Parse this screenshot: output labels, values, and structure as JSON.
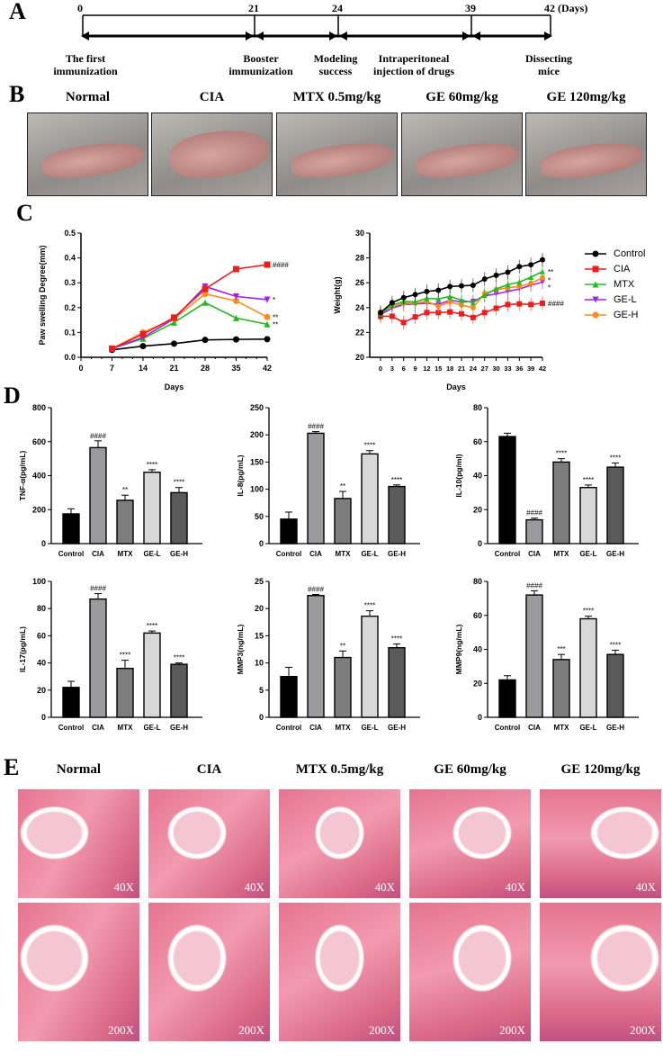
{
  "panels": {
    "A": "A",
    "B": "B",
    "C": "C",
    "D": "D",
    "E": "E"
  },
  "timeline": {
    "days": [
      "0",
      "21",
      "24",
      "39",
      "42"
    ],
    "unit": "(Days)",
    "events": [
      "The first immunization",
      "Booster immunization",
      "Modeling success",
      "Intraperitoneal injection of drugs",
      "Dissecting mice"
    ]
  },
  "photos": {
    "titles": [
      "Normal",
      "CIA",
      "MTX 0.5mg/kg",
      "GE 60mg/kg",
      "GE 120mg/kg"
    ]
  },
  "histology": {
    "titles": [
      "Normal",
      "CIA",
      "MTX 0.5mg/kg",
      "GE 60mg/kg",
      "GE 120mg/kg"
    ],
    "mag_low": "40X",
    "mag_high": "200X"
  },
  "colors": {
    "Control": "#000000",
    "CIA": "#ee1c1c",
    "MTX": "#22bb22",
    "GE-L": "#a020f0",
    "GE-H": "#ff8c1a"
  },
  "legend": [
    "Control",
    "CIA",
    "MTX",
    "GE-L",
    "GE-H"
  ],
  "chart_data": [
    {
      "type": "line",
      "ylabel": "Paw swelling Degree(mm)",
      "xlabel": "Days",
      "ylim": [
        0,
        0.5
      ],
      "yticks": [
        "0.0",
        "0.1",
        "0.2",
        "0.3",
        "0.4",
        "0.5"
      ],
      "xlim": [
        0,
        42
      ],
      "xticks": [
        "0",
        "7",
        "14",
        "21",
        "28",
        "35",
        "42"
      ],
      "x": [
        7,
        14,
        21,
        28,
        35,
        42
      ],
      "series": [
        {
          "name": "Control",
          "values": [
            0.03,
            0.045,
            0.055,
            0.07,
            0.072,
            0.073
          ],
          "sig": ""
        },
        {
          "name": "CIA",
          "values": [
            0.035,
            0.093,
            0.16,
            0.275,
            0.355,
            0.373
          ],
          "sig": "####"
        },
        {
          "name": "MTX",
          "values": [
            0.035,
            0.075,
            0.14,
            0.22,
            0.158,
            0.133
          ],
          "sig": "**"
        },
        {
          "name": "GE-L",
          "values": [
            0.035,
            0.08,
            0.155,
            0.285,
            0.245,
            0.232
          ],
          "sig": "*"
        },
        {
          "name": "GE-H",
          "values": [
            0.035,
            0.1,
            0.155,
            0.255,
            0.227,
            0.162
          ],
          "sig": "**"
        }
      ]
    },
    {
      "type": "line",
      "ylabel": "Weight(g)",
      "xlabel": "Days",
      "ylim": [
        20,
        30
      ],
      "yticks": [
        "20",
        "22",
        "24",
        "26",
        "28",
        "30"
      ],
      "xlim": [
        0,
        42
      ],
      "xticks": [
        "0",
        "3",
        "6",
        "9",
        "12",
        "15",
        "18",
        "21",
        "24",
        "27",
        "30",
        "33",
        "36",
        "39",
        "42"
      ],
      "x": [
        0,
        3,
        6,
        9,
        12,
        15,
        18,
        21,
        24,
        27,
        30,
        33,
        36,
        39,
        42
      ],
      "series": [
        {
          "name": "Control",
          "values": [
            23.6,
            24.4,
            24.8,
            25.05,
            25.3,
            25.4,
            25.7,
            25.75,
            25.8,
            26.3,
            26.6,
            26.85,
            27.3,
            27.45,
            27.85
          ],
          "sig": ""
        },
        {
          "name": "CIA",
          "values": [
            23.3,
            23.3,
            22.8,
            23.25,
            23.6,
            23.6,
            23.65,
            23.5,
            23.2,
            23.6,
            23.95,
            24.25,
            24.3,
            24.25,
            24.35
          ],
          "sig": "####"
        },
        {
          "name": "MTX",
          "values": [
            23.5,
            24.2,
            24.5,
            24.45,
            24.75,
            24.7,
            24.9,
            24.6,
            24.4,
            25.0,
            25.5,
            25.85,
            26.05,
            26.45,
            26.9
          ],
          "sig": "**"
        },
        {
          "name": "GE-L",
          "values": [
            23.45,
            23.95,
            24.25,
            24.3,
            24.35,
            24.25,
            24.6,
            24.45,
            24.5,
            24.95,
            25.1,
            25.3,
            25.5,
            25.8,
            26.05
          ],
          "sig": "*"
        },
        {
          "name": "GE-H",
          "values": [
            23.65,
            24.1,
            24.35,
            24.35,
            24.5,
            24.1,
            24.45,
            24.2,
            24.0,
            25.15,
            25.45,
            25.6,
            25.7,
            25.95,
            26.4
          ],
          "sig": "*"
        }
      ]
    },
    {
      "type": "bar",
      "ylabel": "TNF-α(pg/mL)",
      "categories": [
        "Control",
        "CIA",
        "MTX",
        "GE-L",
        "GE-H"
      ],
      "values": [
        175,
        565,
        255,
        420,
        300
      ],
      "errors": [
        30,
        40,
        30,
        15,
        30
      ],
      "sig": [
        "",
        "####",
        "**",
        "****",
        "****"
      ],
      "ylim": [
        0,
        800
      ],
      "yticks": [
        "0",
        "200",
        "400",
        "600",
        "800"
      ]
    },
    {
      "type": "bar",
      "ylabel": "IL-8(pg/mL)",
      "categories": [
        "Control",
        "CIA",
        "MTX",
        "GE-L",
        "GE-H"
      ],
      "values": [
        45,
        203,
        83,
        165,
        105
      ],
      "errors": [
        13,
        3,
        13,
        6,
        3
      ],
      "sig": [
        "",
        "####",
        "**",
        "****",
        "****"
      ],
      "ylim": [
        0,
        250
      ],
      "yticks": [
        "0",
        "50",
        "100",
        "150",
        "200",
        "250"
      ]
    },
    {
      "type": "bar",
      "ylabel": "IL-10(pg/ml)",
      "categories": [
        "Control",
        "CIA",
        "MTX",
        "GE-L",
        "GE-H"
      ],
      "values": [
        63,
        14,
        48,
        33,
        45
      ],
      "errors": [
        2,
        1,
        2,
        1.5,
        2.5
      ],
      "sig": [
        "",
        "####",
        "****",
        "****",
        "****"
      ],
      "ylim": [
        0,
        80
      ],
      "yticks": [
        "0",
        "20",
        "40",
        "60",
        "80"
      ]
    },
    {
      "type": "bar",
      "ylabel": "IL-17(pg/mL)",
      "categories": [
        "Control",
        "CIA",
        "MTX",
        "GE-L",
        "GE-H"
      ],
      "values": [
        22,
        87,
        36,
        62,
        39
      ],
      "errors": [
        4.5,
        4,
        6,
        1.5,
        1
      ],
      "sig": [
        "",
        "####",
        "****",
        "****",
        "****"
      ],
      "ylim": [
        0,
        100
      ],
      "yticks": [
        "0",
        "20",
        "40",
        "60",
        "80",
        "100"
      ]
    },
    {
      "type": "bar",
      "ylabel": "MMP3(ng/mL)",
      "categories": [
        "Control",
        "CIA",
        "MTX",
        "GE-L",
        "GE-H"
      ],
      "values": [
        7.5,
        22.4,
        11,
        18.6,
        12.8
      ],
      "errors": [
        1.7,
        0.2,
        1.2,
        1,
        0.7
      ],
      "sig": [
        "",
        "####",
        "**",
        "****",
        "****"
      ],
      "ylim": [
        0,
        25
      ],
      "yticks": [
        "0",
        "5",
        "10",
        "15",
        "20",
        "25"
      ]
    },
    {
      "type": "bar",
      "ylabel": "MMP9(ng/mL)",
      "categories": [
        "Control",
        "CIA",
        "MTX",
        "GE-L",
        "GE-H"
      ],
      "values": [
        22,
        72,
        34,
        58,
        37
      ],
      "errors": [
        2.5,
        2.5,
        3,
        1.5,
        2.5
      ],
      "sig": [
        "",
        "####",
        "***",
        "****",
        "****"
      ],
      "ylim": [
        0,
        80
      ],
      "yticks": [
        "0",
        "20",
        "40",
        "60",
        "80"
      ]
    }
  ],
  "bar_colors": [
    "#000000",
    "#9a9a9f",
    "#7d7d7d",
    "#d8d8d8",
    "#5a5a5a"
  ]
}
